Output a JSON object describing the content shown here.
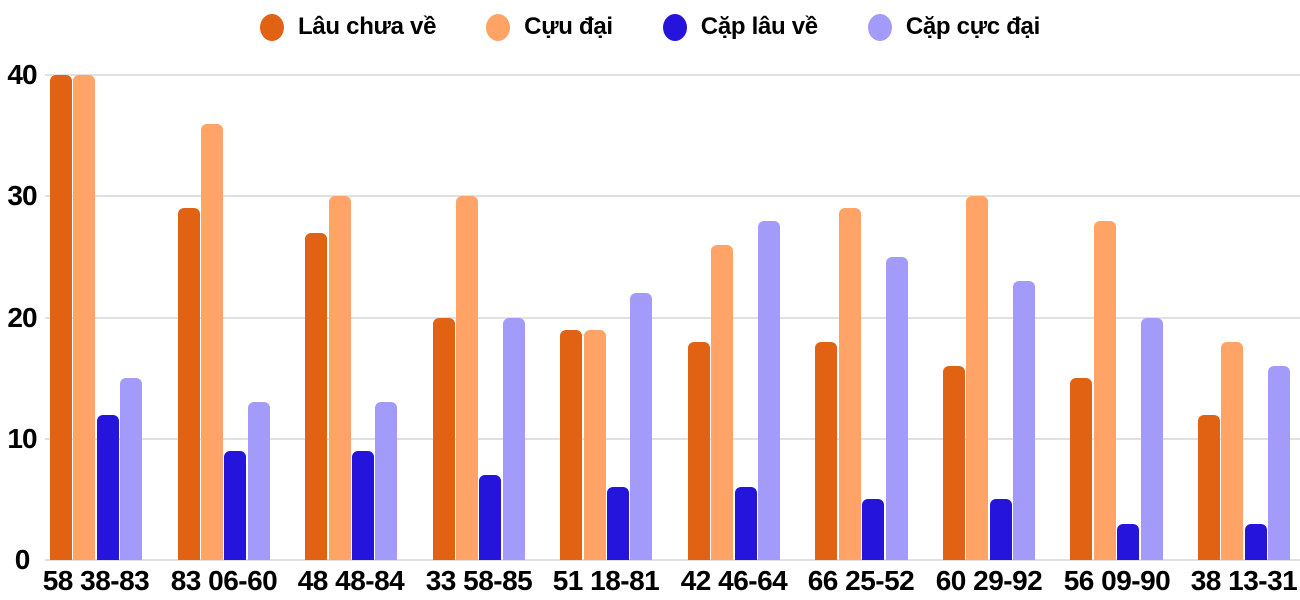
{
  "chart_data": {
    "type": "bar",
    "title": "",
    "xlabel": "",
    "ylabel": "",
    "categories": [
      "58 38-83",
      "83 06-60",
      "48 48-84",
      "33 58-85",
      "51 18-81",
      "42 46-64",
      "66 25-52",
      "60 29-92",
      "56 09-90",
      "38 13-31"
    ],
    "series": [
      {
        "name": "Lâu chưa về",
        "color": "#e06212",
        "values": [
          40,
          29,
          27,
          20,
          19,
          18,
          18,
          16,
          15,
          12
        ]
      },
      {
        "name": "Cựu đại",
        "color": "#ffa366",
        "values": [
          40,
          36,
          30,
          30,
          19,
          26,
          29,
          30,
          28,
          18
        ]
      },
      {
        "name": "Cặp lâu về",
        "color": "#2414dc",
        "values": [
          12,
          9,
          9,
          7,
          6,
          6,
          5,
          5,
          3,
          3
        ]
      },
      {
        "name": "Cặp cực đại",
        "color": "#a29bfa",
        "values": [
          15,
          13,
          13,
          20,
          22,
          28,
          25,
          23,
          20,
          16
        ]
      }
    ],
    "ylim": [
      0,
      40
    ],
    "yticks": [
      0,
      10,
      20,
      30,
      40
    ],
    "grid": true,
    "legend_position": "top"
  },
  "colors": {
    "background": "#ffffff",
    "grid": "#e1e1e1",
    "text": "#000000"
  }
}
